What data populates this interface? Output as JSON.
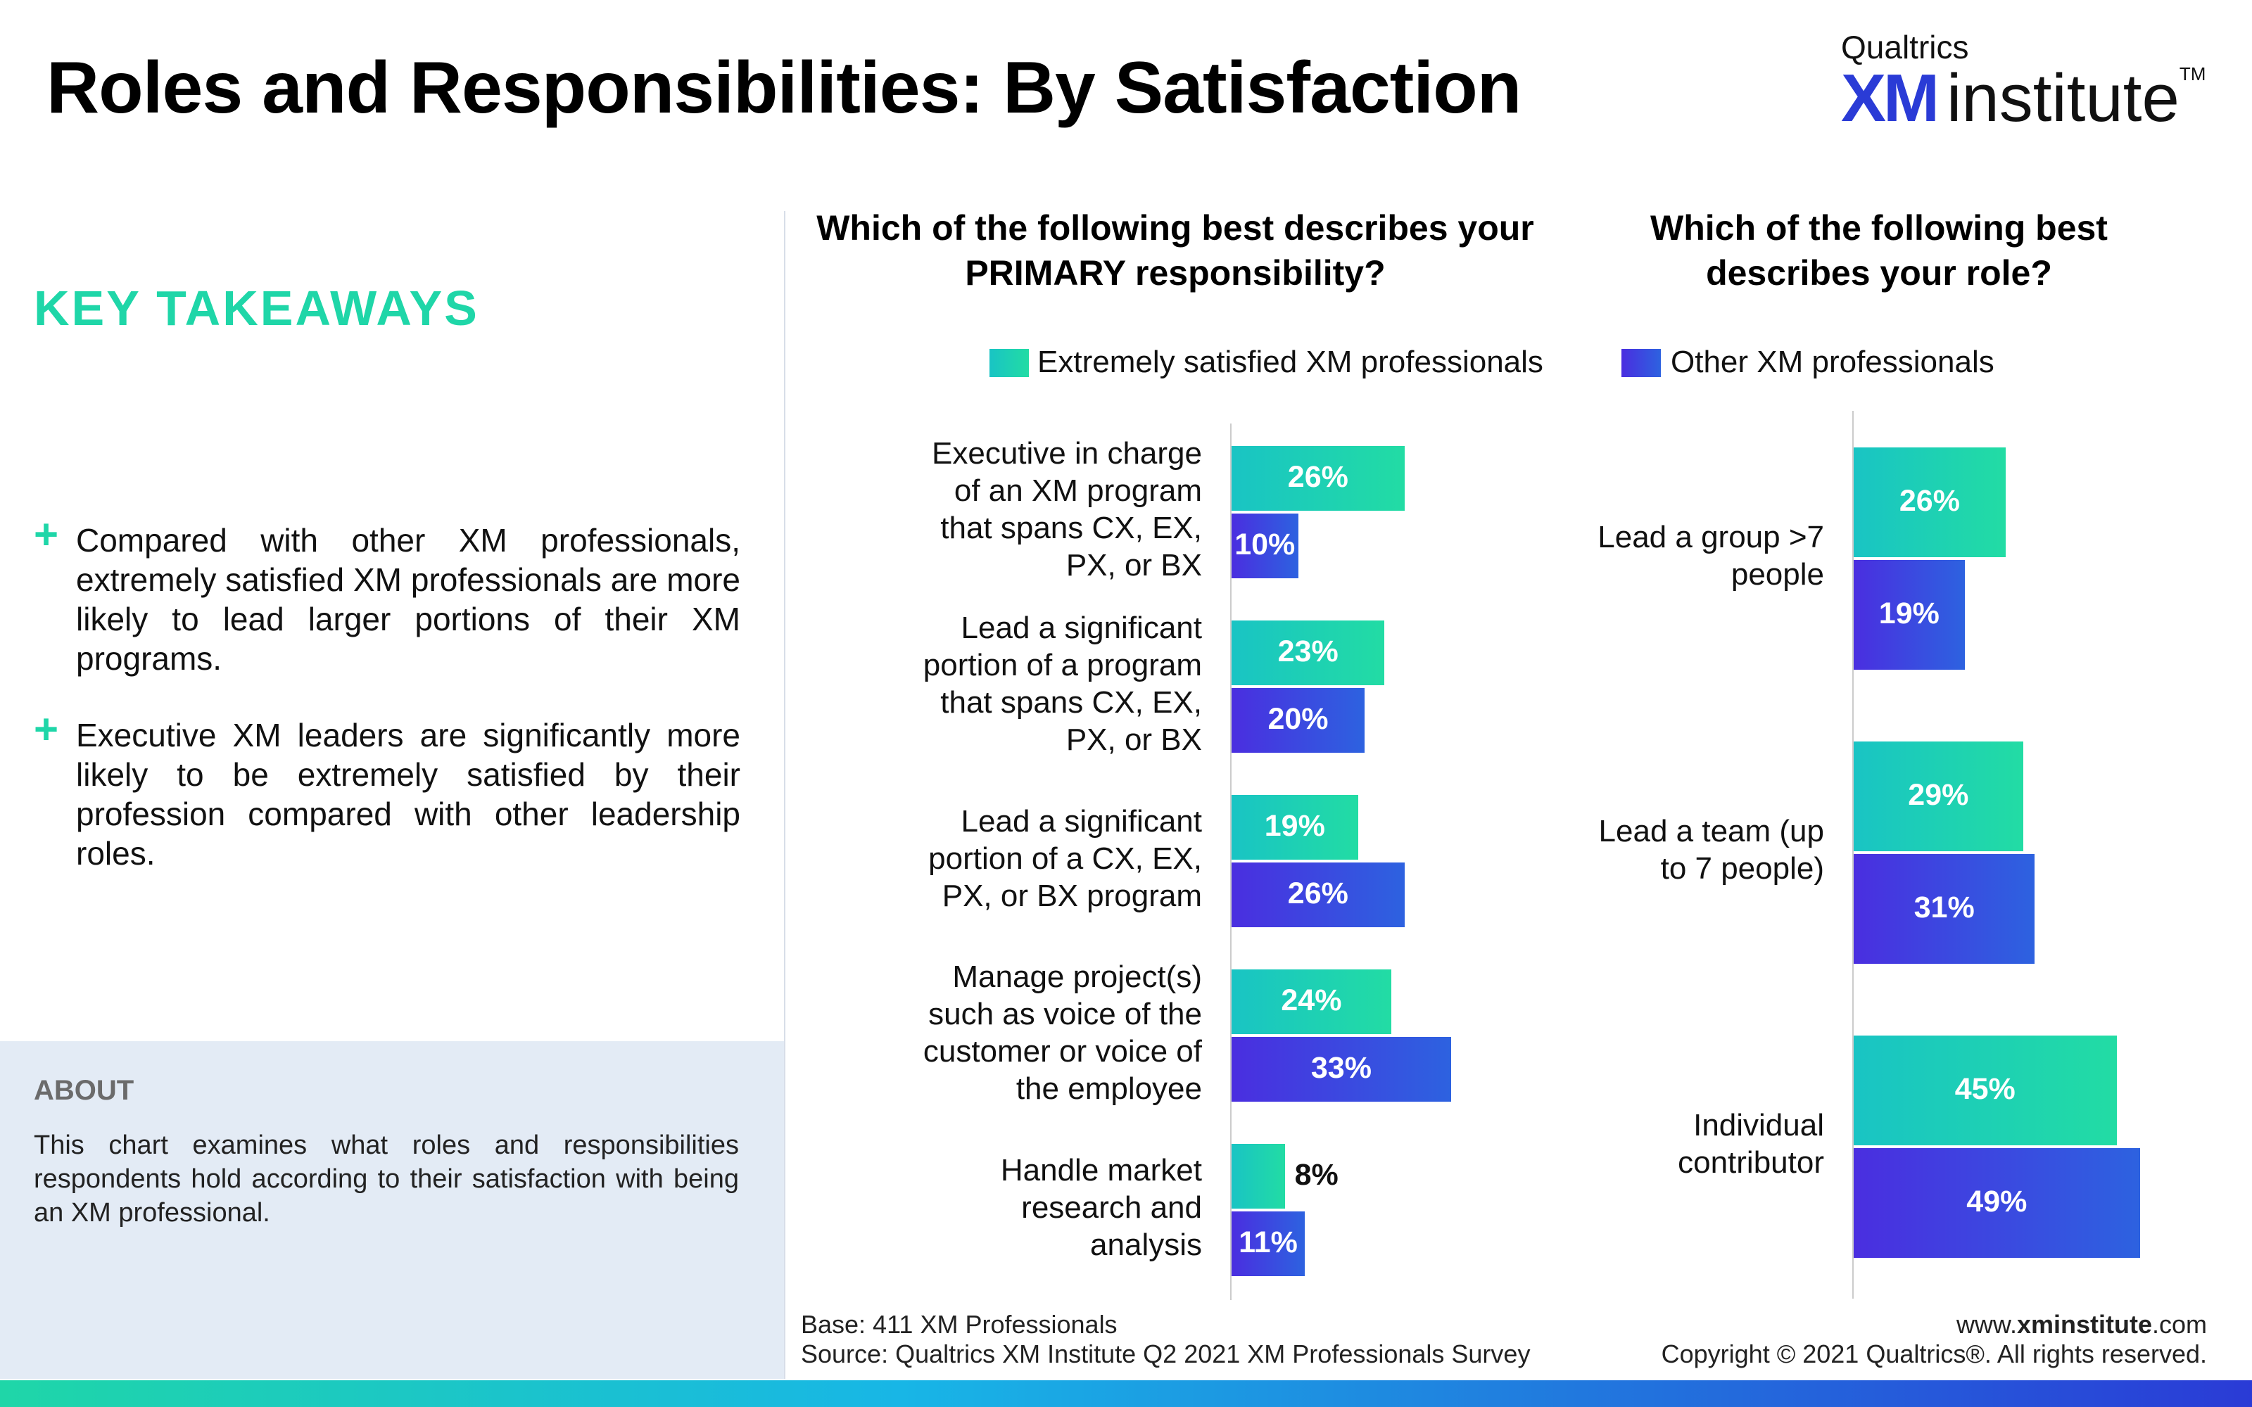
{
  "header": {
    "title": "Roles and Responsibilities: By Satisfaction",
    "logo_top": "Qualtrics",
    "logo_xm": "XM",
    "logo_institute": "institute",
    "logo_tm": "TM"
  },
  "sidebar": {
    "takeaways_heading": "KEY TAKEAWAYS",
    "bullets": [
      "Compared with other XM professionals, extremely satisfied XM professionals are more likely to lead larger portions of their XM programs.",
      "Executive XM leaders are significantly more likely to be extremely satisfied by their profession compared with other leadership roles."
    ],
    "bullet_symbol": "+",
    "about_heading": "ABOUT",
    "about_text": "This chart examines what roles and responsibilities respondents hold according to their satisfaction with being an XM professional."
  },
  "legend": {
    "series1": "Extremely satisfied XM professionals",
    "series2": "Other XM professionals"
  },
  "colors": {
    "series1_start": "#19c4c4",
    "series1_end": "#22dca4",
    "series2_start": "#4a2ee0",
    "series2_end": "#2d62e0",
    "accent": "#1fd6a8"
  },
  "chart_data": [
    {
      "type": "bar",
      "orientation": "horizontal",
      "title": "Which of the following best describes your PRIMARY responsibility?",
      "categories": [
        "Executive in charge of an XM program that spans CX, EX, PX, or BX",
        "Lead a significant portion of a program that spans CX, EX, PX, or BX",
        "Lead a significant portion of a CX, EX, PX, or BX program",
        "Manage project(s) such as voice of the customer or voice of the employee",
        "Handle market research and analysis"
      ],
      "category_lines": [
        [
          "Executive in charge",
          "of an XM program",
          "that spans CX, EX,",
          "PX, or BX"
        ],
        [
          "Lead a significant",
          "portion of a program",
          "that spans CX, EX,",
          "PX, or BX"
        ],
        [
          "Lead a significant",
          "portion of a CX, EX,",
          "PX, or BX program"
        ],
        [
          "Manage project(s)",
          "such as voice of the",
          "customer or voice of",
          "the employee"
        ],
        [
          "Handle market",
          "research and",
          "analysis"
        ]
      ],
      "series": [
        {
          "name": "Extremely satisfied XM professionals",
          "values": [
            26,
            23,
            19,
            24,
            8
          ],
          "labels": [
            "26%",
            "23%",
            "19%",
            "24%",
            "8%"
          ]
        },
        {
          "name": "Other XM professionals",
          "values": [
            10,
            20,
            26,
            33,
            11
          ],
          "labels": [
            "10%",
            "20%",
            "26%",
            "33%",
            "11%"
          ]
        }
      ]
    },
    {
      "type": "bar",
      "orientation": "horizontal",
      "title": "Which of the following best describes your role?",
      "categories": [
        "Lead a group >7 people",
        "Lead a team (up to 7 people)",
        "Individual contributor"
      ],
      "category_lines": [
        [
          "Lead a group >7",
          "people"
        ],
        [
          "Lead a team (up",
          "to 7 people)"
        ],
        [
          "Individual",
          "contributor"
        ]
      ],
      "series": [
        {
          "name": "Extremely satisfied XM professionals",
          "values": [
            26,
            29,
            45
          ],
          "labels": [
            "26%",
            "29%",
            "45%"
          ]
        },
        {
          "name": "Other XM professionals",
          "values": [
            19,
            31,
            49
          ],
          "labels": [
            "19%",
            "31%",
            "49%"
          ]
        }
      ]
    }
  ],
  "footer": {
    "base": "Base: 411 XM Professionals",
    "source": "Source: Qualtrics XM Institute Q2 2021 XM Professionals Survey",
    "url_prefix": "www.",
    "url_bold": "xminstitute",
    "url_suffix": ".com",
    "copyright": "Copyright © 2021 Qualtrics®. All rights reserved."
  }
}
